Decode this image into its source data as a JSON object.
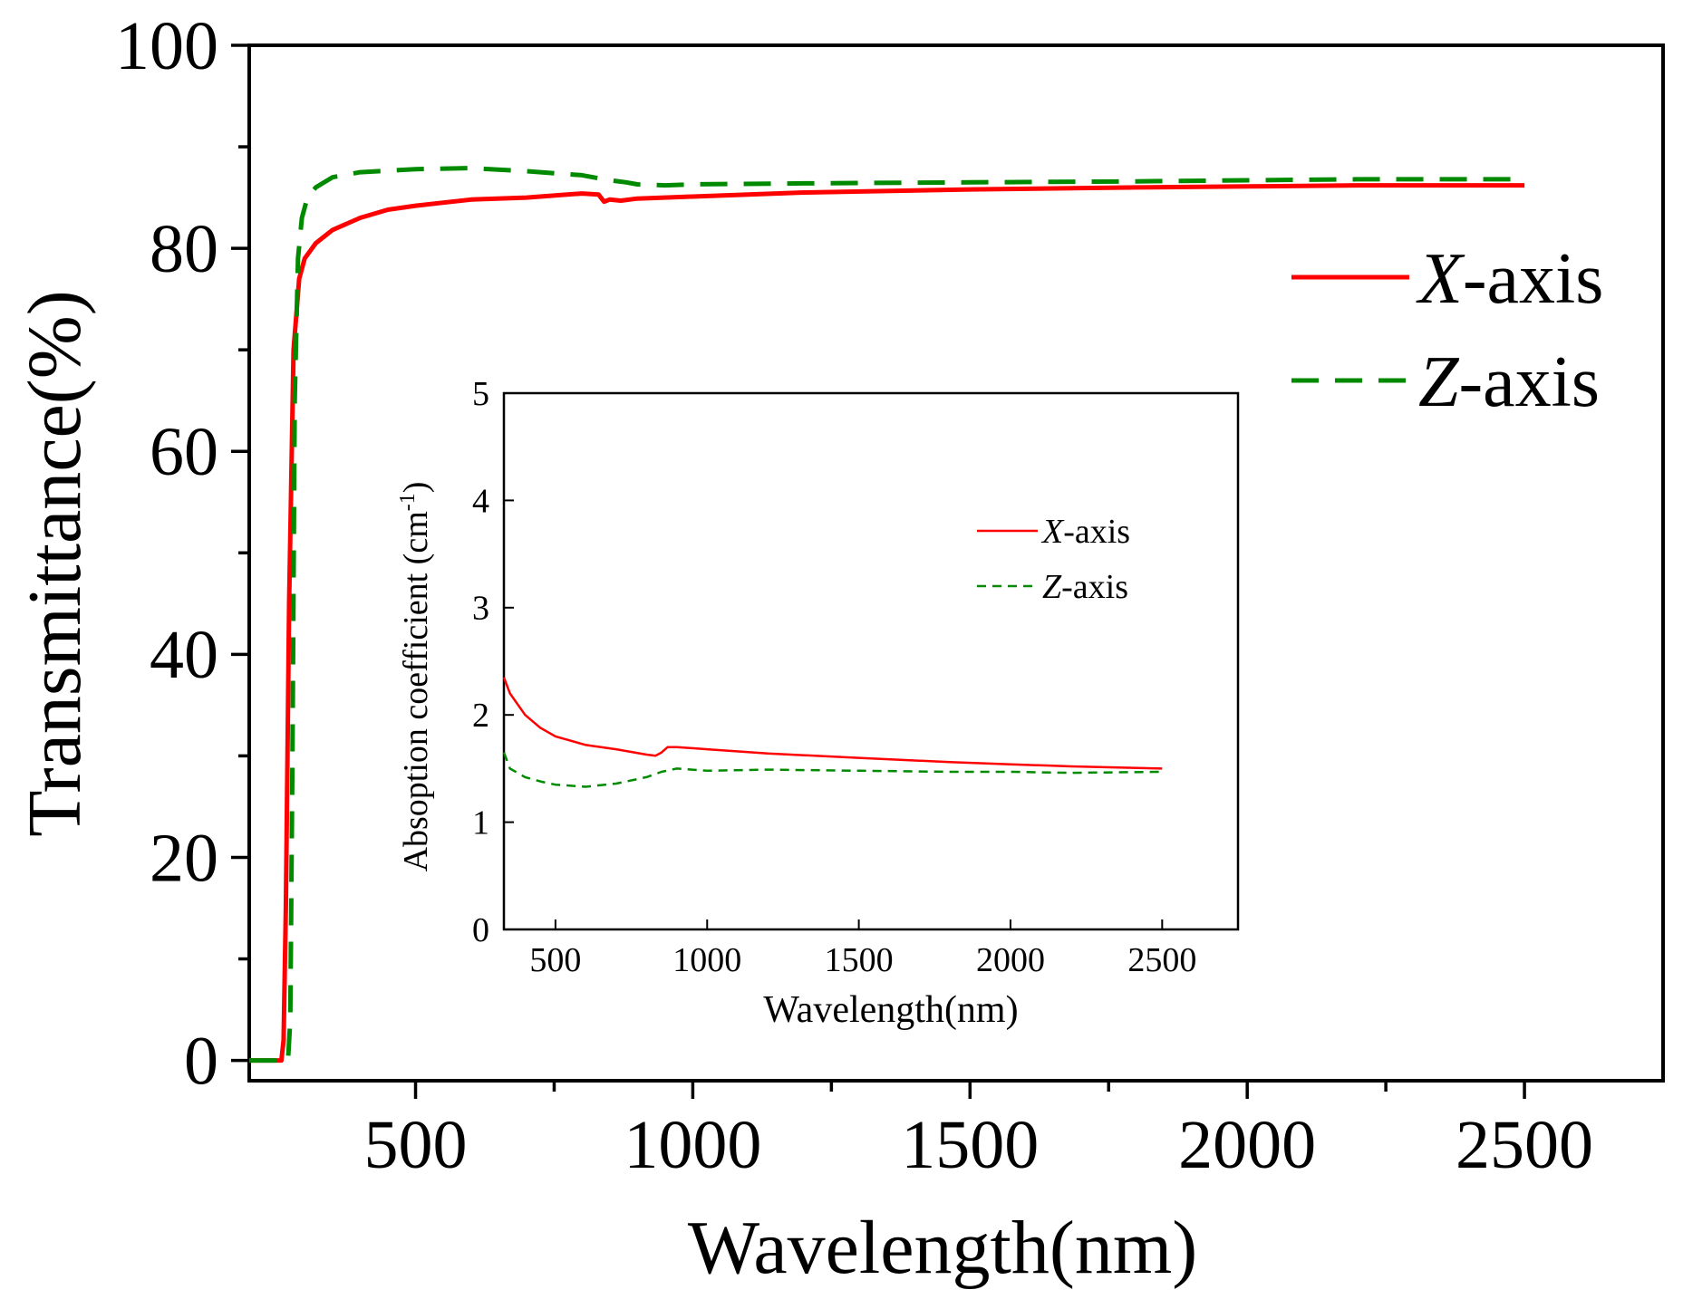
{
  "colors": {
    "x_axis": "#ff0000",
    "z_axis": "#008a00",
    "axes": "#000000",
    "background": "#ffffff"
  },
  "chart_data": [
    {
      "id": "main",
      "type": "line",
      "title": "",
      "xlabel": "Wavelength(nm)",
      "ylabel": "Transmittance(%)",
      "xlim": [
        200,
        2750
      ],
      "ylim": [
        -2,
        100
      ],
      "xticks": [
        500,
        1000,
        1500,
        2000,
        2500
      ],
      "xtick_labels": [
        "500",
        "1000",
        "1500",
        "2000",
        "2500"
      ],
      "xminor": [
        750,
        1250,
        1750,
        2250
      ],
      "yticks": [
        0,
        20,
        40,
        60,
        80,
        100
      ],
      "ytick_labels": [
        "0",
        "20",
        "40",
        "60",
        "80",
        "100"
      ],
      "yminor": [
        10,
        30,
        50,
        70,
        90
      ],
      "grid": false,
      "legend": {
        "position": "right",
        "entries": [
          {
            "prefix": "X",
            "suffix": "-axis",
            "style": "solid"
          },
          {
            "prefix": "Z",
            "suffix": "-axis",
            "style": "dashed"
          }
        ]
      },
      "series": [
        {
          "name": "X-axis",
          "style": "solid",
          "x": [
            200,
            258,
            262,
            266,
            272,
            280,
            290,
            300,
            320,
            350,
            400,
            450,
            500,
            550,
            600,
            700,
            800,
            830,
            840,
            850,
            870,
            900,
            1000,
            1200,
            1500,
            1800,
            2000,
            2200,
            2500
          ],
          "y": [
            0,
            0,
            2,
            15,
            45,
            70,
            77,
            79,
            80.5,
            81.8,
            83,
            83.8,
            84.2,
            84.5,
            84.8,
            85,
            85.4,
            85.3,
            84.6,
            84.8,
            84.7,
            84.9,
            85.1,
            85.5,
            85.8,
            86,
            86.1,
            86.2,
            86.2
          ]
        },
        {
          "name": "Z-axis",
          "style": "dashed",
          "x": [
            200,
            270,
            274,
            278,
            282,
            288,
            295,
            305,
            320,
            350,
            400,
            500,
            600,
            700,
            800,
            850,
            880,
            900,
            950,
            1000,
            1200,
            1500,
            1800,
            2000,
            2200,
            2500
          ],
          "y": [
            0,
            0,
            4,
            30,
            65,
            79,
            83,
            85,
            86,
            87,
            87.5,
            87.8,
            87.9,
            87.6,
            87.2,
            86.7,
            86.5,
            86.3,
            86.2,
            86.3,
            86.4,
            86.5,
            86.6,
            86.7,
            86.8,
            86.8
          ]
        }
      ]
    },
    {
      "id": "inset",
      "type": "line",
      "title": "",
      "xlabel": "Wavelength(nm)",
      "ylabel_main": "Absoption coefficient (cm",
      "ylabel_sup": "-1",
      "ylabel_close": ")",
      "xlim": [
        330,
        2750
      ],
      "ylim": [
        0,
        5
      ],
      "xticks": [
        500,
        1000,
        1500,
        2000,
        2500
      ],
      "xtick_labels": [
        "500",
        "1000",
        "1500",
        "2000",
        "2500"
      ],
      "yticks": [
        0,
        1,
        2,
        3,
        4,
        5
      ],
      "ytick_labels": [
        "0",
        "1",
        "2",
        "3",
        "4",
        "5"
      ],
      "grid": false,
      "legend": {
        "position": "top-right",
        "entries": [
          {
            "prefix": "X",
            "suffix": "-axis",
            "style": "solid"
          },
          {
            "prefix": "Z",
            "suffix": "-axis",
            "style": "dashed"
          }
        ]
      },
      "series": [
        {
          "name": "X-axis",
          "style": "solid",
          "x": [
            330,
            350,
            400,
            450,
            500,
            600,
            700,
            800,
            830,
            850,
            870,
            900,
            1000,
            1200,
            1500,
            1800,
            2000,
            2200,
            2500
          ],
          "y": [
            2.35,
            2.2,
            2.0,
            1.88,
            1.8,
            1.72,
            1.68,
            1.63,
            1.62,
            1.65,
            1.7,
            1.7,
            1.68,
            1.64,
            1.6,
            1.56,
            1.54,
            1.52,
            1.5
          ]
        },
        {
          "name": "Z-axis",
          "style": "dashed",
          "x": [
            330,
            350,
            400,
            450,
            500,
            600,
            700,
            800,
            850,
            900,
            950,
            1000,
            1200,
            1500,
            1800,
            2000,
            2200,
            2500
          ],
          "y": [
            1.65,
            1.5,
            1.42,
            1.38,
            1.35,
            1.33,
            1.36,
            1.42,
            1.47,
            1.5,
            1.49,
            1.48,
            1.49,
            1.48,
            1.47,
            1.47,
            1.46,
            1.47
          ]
        }
      ]
    }
  ]
}
